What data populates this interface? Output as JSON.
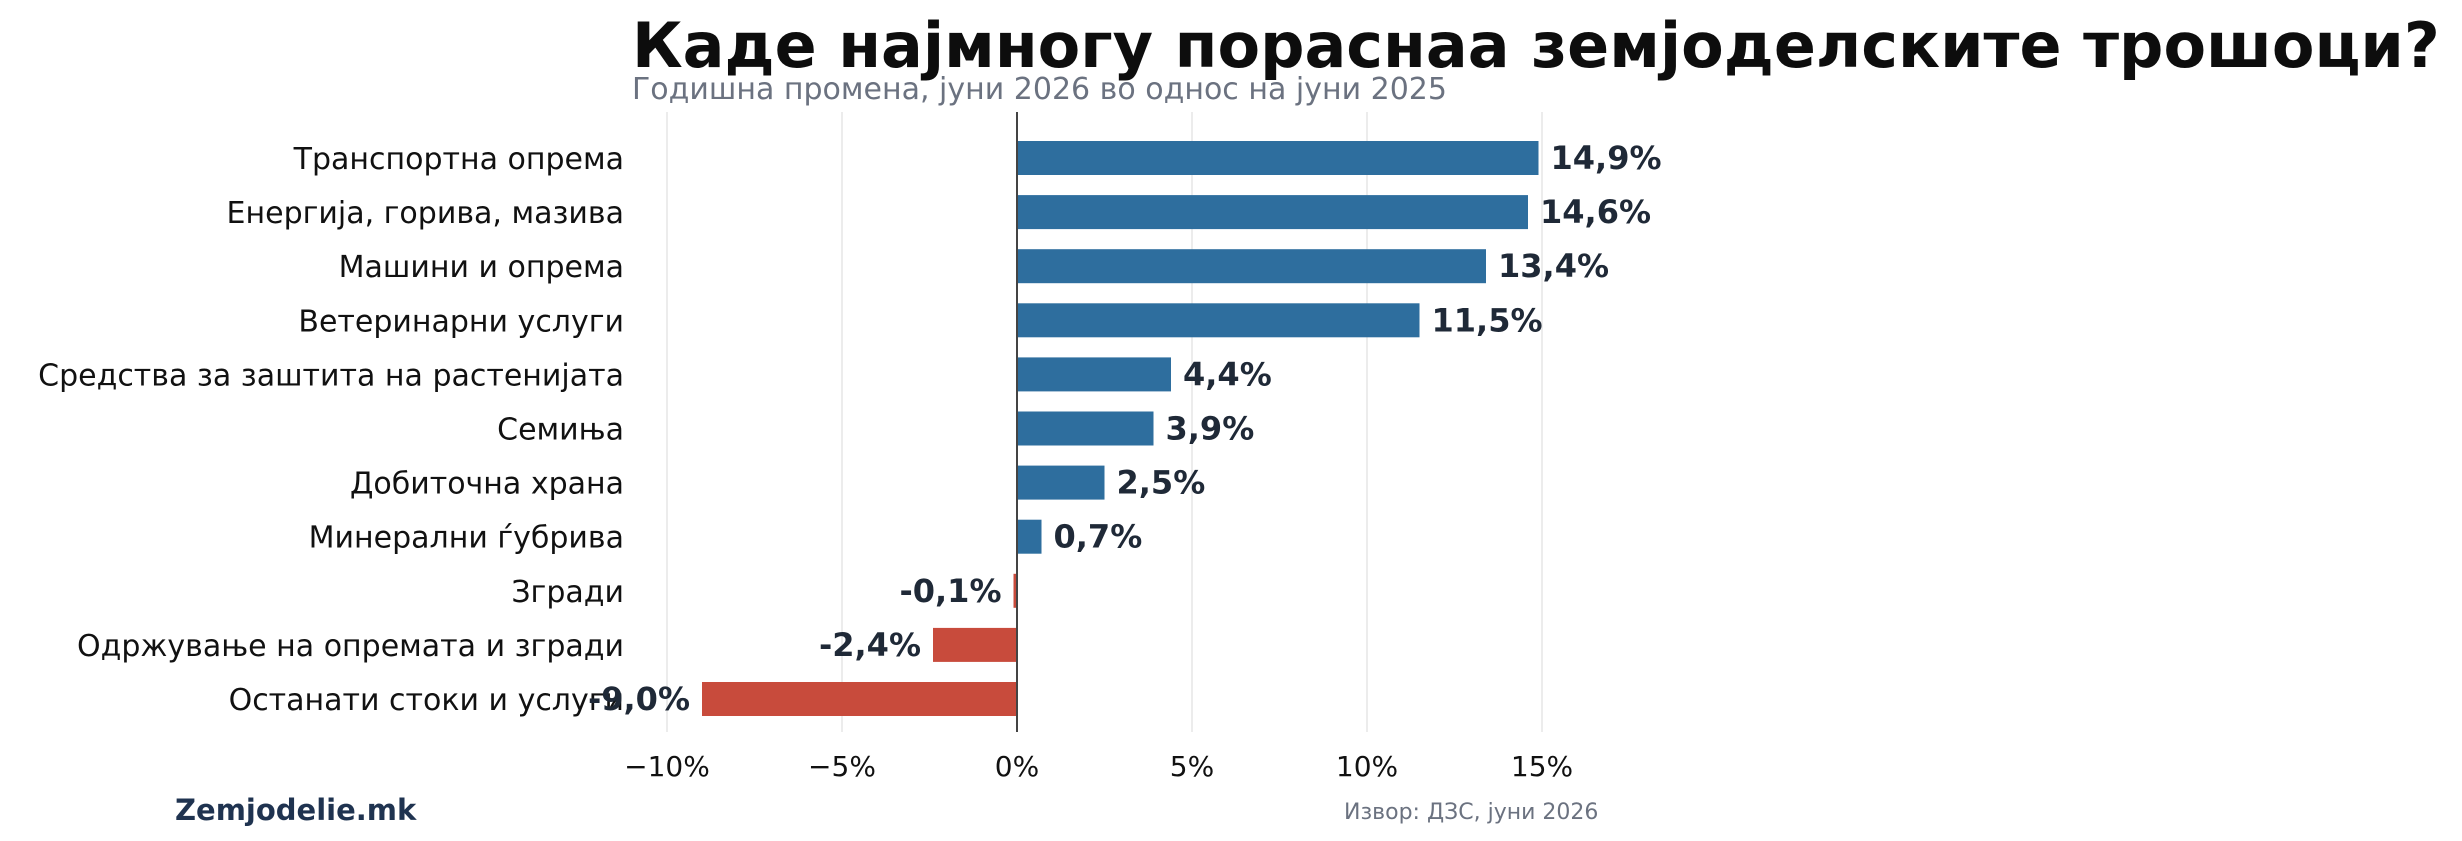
{
  "title": "Каде најмногу пораснаа земјоделските трошоци?",
  "subtitle": "Годишна промена, јуни 2026 во однос на јуни 2025",
  "brand": "Zemjodelie.mk",
  "source": "Извор: ДЗС, јуни 2026",
  "colors": {
    "positive": "#2e6e9e",
    "negative": "#c84b3c",
    "zero_line": "#444444",
    "grid": "#e5e5e5"
  },
  "chart_data": {
    "type": "bar",
    "orientation": "horizontal",
    "title": "Каде најмногу пораснаа земјоделските трошоци?",
    "subtitle": "Годишна промена, јуни 2026 во однос на јуни 2025",
    "categories": [
      "Транспортна опрема",
      "Енергија, горива, мазива",
      "Машини и опрема",
      "Ветеринарни услуги",
      "Средства за заштита на растенијата",
      "Семиња",
      "Добиточна храна",
      "Минерални ѓубрива",
      "Згради",
      "Одржување на опремата и згради",
      "Останати стоки и услуги"
    ],
    "values": [
      14.9,
      14.6,
      13.4,
      11.5,
      4.4,
      3.9,
      2.5,
      0.7,
      -0.1,
      -2.4,
      -9.0
    ],
    "value_labels": [
      "14,9%",
      "14,6%",
      "13,4%",
      "11,5%",
      "4,4%",
      "3,9%",
      "2,5%",
      "0,7%",
      "-0,1%",
      "-2,4%",
      "-9,0%"
    ],
    "xlim": [
      -11,
      16
    ],
    "xticks": [
      -10,
      -5,
      0,
      5,
      10,
      15
    ],
    "xtick_labels": [
      "−10%",
      "−5%",
      "0%",
      "5%",
      "10%",
      "15%"
    ],
    "grid": "vertical",
    "legend": "none"
  }
}
